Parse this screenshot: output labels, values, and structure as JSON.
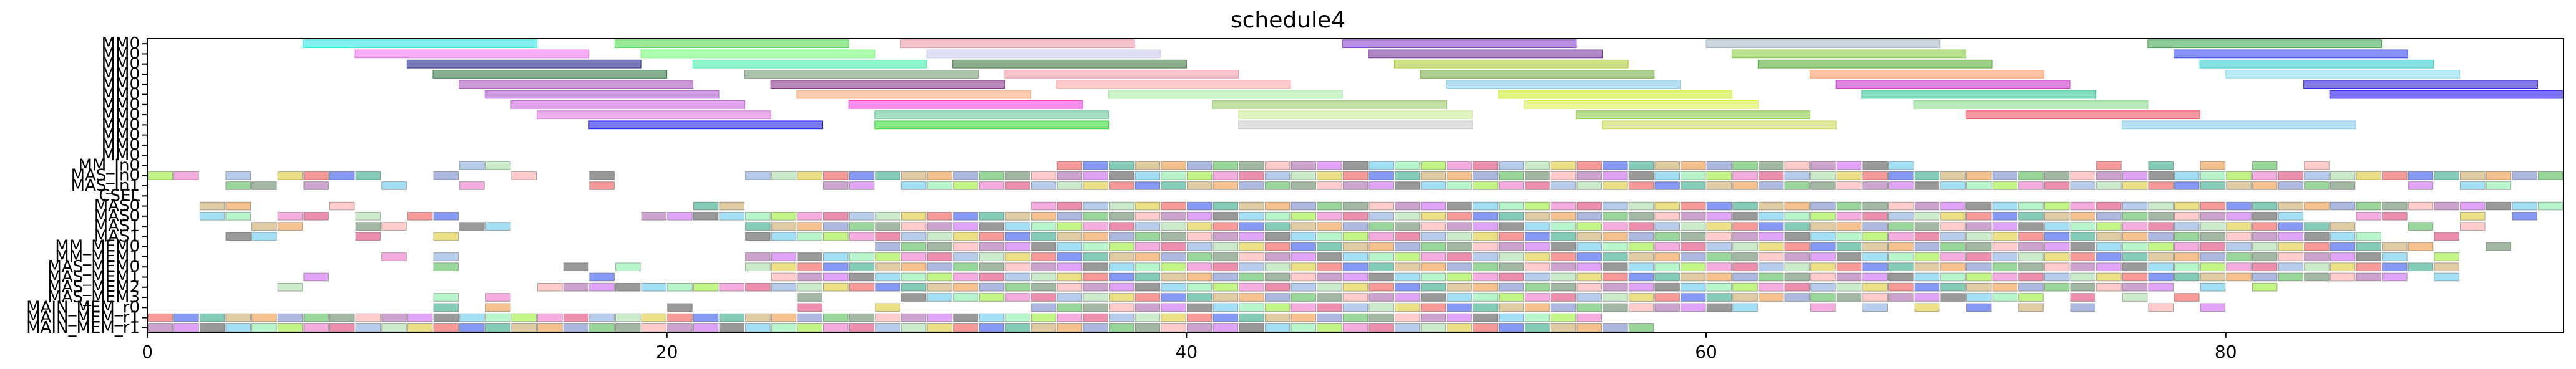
{
  "chart_data": {
    "type": "gantt",
    "title": "schedule4",
    "xlabel": "",
    "ylabel": "",
    "xlim": [
      0,
      93
    ],
    "xticks": [
      0,
      20,
      40,
      60,
      80
    ],
    "grid": false,
    "rows": [
      "MM0",
      "MM0",
      "MM0",
      "MM0",
      "MM0",
      "MM0",
      "MM0",
      "MM0",
      "MM0",
      "MM0",
      "MM0",
      "MM0",
      "MM_In0",
      "MAS_In0",
      "MAS_In1",
      "CSEL",
      "MAS0",
      "MAS0",
      "MAS1",
      "MAS1",
      "MM_MEM0",
      "MM_MEM1",
      "MAS_MEM0",
      "MAS_MEM1",
      "MAS_MEM2",
      "MAS_MEM3",
      "MAIN_MEM_r0",
      "MAIN_MEM_r1",
      "MAIN_MEM_r1"
    ],
    "tasks": [
      {
        "row": 0,
        "start": 6.0,
        "end": 15.0,
        "color": "#33e6e6"
      },
      {
        "row": 0,
        "start": 18.0,
        "end": 27.0,
        "color": "#55dd55"
      },
      {
        "row": 0,
        "start": 29.0,
        "end": 38.0,
        "color": "#ee99aa"
      },
      {
        "row": 0,
        "start": 46.0,
        "end": 55.0,
        "color": "#8844cc"
      },
      {
        "row": 0,
        "start": 60.0,
        "end": 69.0,
        "color": "#aabbcc"
      },
      {
        "row": 0,
        "start": 77.0,
        "end": 86.0,
        "color": "#44aa55"
      },
      {
        "row": 1,
        "start": 8.0,
        "end": 17.0,
        "color": "#ee77ee"
      },
      {
        "row": 1,
        "start": 19.0,
        "end": 28.0,
        "color": "#77ff77"
      },
      {
        "row": 1,
        "start": 30.0,
        "end": 39.0,
        "color": "#ccccee"
      },
      {
        "row": 1,
        "start": 47.0,
        "end": 56.0,
        "color": "#773399"
      },
      {
        "row": 1,
        "start": 61.0,
        "end": 70.0,
        "color": "#88cc44"
      },
      {
        "row": 1,
        "start": 78.0,
        "end": 87.0,
        "color": "#3344ee"
      },
      {
        "row": 2,
        "start": 10.0,
        "end": 19.0,
        "color": "#222288"
      },
      {
        "row": 2,
        "start": 21.0,
        "end": 30.0,
        "color": "#44eeaa"
      },
      {
        "row": 2,
        "start": 31.0,
        "end": 40.0,
        "color": "#447744"
      },
      {
        "row": 2,
        "start": 48.0,
        "end": 57.0,
        "color": "#aacc33"
      },
      {
        "row": 2,
        "start": 62.0,
        "end": 71.0,
        "color": "#55aa33"
      },
      {
        "row": 2,
        "start": 79.0,
        "end": 88.0,
        "color": "#33cccc"
      },
      {
        "row": 3,
        "start": 11.0,
        "end": 20.0,
        "color": "#337744"
      },
      {
        "row": 3,
        "start": 23.0,
        "end": 32.0,
        "color": "#779977"
      },
      {
        "row": 3,
        "start": 33.0,
        "end": 42.0,
        "color": "#ee99aa"
      },
      {
        "row": 3,
        "start": 49.0,
        "end": 58.0,
        "color": "#77aa44"
      },
      {
        "row": 3,
        "start": 64.0,
        "end": 73.0,
        "color": "#ff9966"
      },
      {
        "row": 3,
        "start": 80.0,
        "end": 89.0,
        "color": "#88ddee"
      },
      {
        "row": 4,
        "start": 12.0,
        "end": 21.0,
        "color": "#aa55bb"
      },
      {
        "row": 4,
        "start": 24.0,
        "end": 33.0,
        "color": "#883388"
      },
      {
        "row": 4,
        "start": 35.0,
        "end": 44.0,
        "color": "#ffaaaa"
      },
      {
        "row": 4,
        "start": 50.0,
        "end": 59.0,
        "color": "#88ccee"
      },
      {
        "row": 4,
        "start": 65.0,
        "end": 74.0,
        "color": "#cc33cc"
      },
      {
        "row": 4,
        "start": 83.0,
        "end": 92.0,
        "color": "#3322dd"
      },
      {
        "row": 5,
        "start": 13.0,
        "end": 22.0,
        "color": "#aa55cc"
      },
      {
        "row": 5,
        "start": 25.0,
        "end": 34.0,
        "color": "#ffaa77"
      },
      {
        "row": 5,
        "start": 37.0,
        "end": 46.0,
        "color": "#aaeeaa"
      },
      {
        "row": 5,
        "start": 52.0,
        "end": 61.0,
        "color": "#ccee33"
      },
      {
        "row": 5,
        "start": 66.0,
        "end": 75.0,
        "color": "#33cc99"
      },
      {
        "row": 5,
        "start": 84.0,
        "end": 93.0,
        "color": "#2211ee"
      },
      {
        "row": 6,
        "start": 14.0,
        "end": 23.0,
        "color": "#cc66dd"
      },
      {
        "row": 6,
        "start": 27.0,
        "end": 36.0,
        "color": "#ee44dd"
      },
      {
        "row": 6,
        "start": 41.0,
        "end": 50.0,
        "color": "#99cc66"
      },
      {
        "row": 6,
        "start": 53.0,
        "end": 62.0,
        "color": "#ddee55"
      },
      {
        "row": 6,
        "start": 68.0,
        "end": 77.0,
        "color": "#88dd88"
      },
      {
        "row": 7,
        "start": 15.0,
        "end": 24.0,
        "color": "#dd77dd"
      },
      {
        "row": 7,
        "start": 28.0,
        "end": 37.0,
        "color": "#66cc99"
      },
      {
        "row": 7,
        "start": 42.0,
        "end": 51.0,
        "color": "#ccee99"
      },
      {
        "row": 7,
        "start": 55.0,
        "end": 64.0,
        "color": "#88cc44"
      },
      {
        "row": 7,
        "start": 70.0,
        "end": 79.0,
        "color": "#ee5566"
      },
      {
        "row": 8,
        "start": 17.0,
        "end": 26.0,
        "color": "#2222ee"
      },
      {
        "row": 8,
        "start": 28.0,
        "end": 37.0,
        "color": "#33dd33"
      },
      {
        "row": 8,
        "start": 42.0,
        "end": 51.0,
        "color": "#cccccc"
      },
      {
        "row": 8,
        "start": 56.0,
        "end": 65.0,
        "color": "#ccdd55"
      },
      {
        "row": 8,
        "start": 76.0,
        "end": 85.0,
        "color": "#88ccee"
      }
    ],
    "cells": {
      "start": 0,
      "step": 1,
      "palette": [
        "#88aadd",
        "#ee5555",
        "#ccaa66",
        "#55bb55",
        "#aa66aa",
        "#66ccee",
        "#ee77cc",
        "#aaddaa",
        "#3355ee",
        "#ee9944",
        "#668866",
        "#cc66ee",
        "#88eeaa",
        "#dd4477",
        "#ddcc33",
        "#33aa88",
        "#7788cc",
        "#ffaaaa",
        "#555555",
        "#99ee33"
      ],
      "rows": {
        "12": "............cc.....................ccccccccccccccccccccccccccccccccc.......c.c.c.c.c..................",
        "13": "cc.c.cccc..c..c..c.....cccccccccccccccccccccccccccccccccccccccccccccccccccccccccccccccccccccccccccc.",
        "14": "...cc.c..c..c....c........cc.cccccccccccccccccccccccccccccccccccccccccccccccccccccccc..c.cc..",
        "16": "..cc...c.............cc...........cccccccccccccccccccccccccccccccccccccccccccccccccccccccccccccccc",
        "17": "..cc.cc.c.cc.......cccccccccccccccccccccccccccccccccccccccccccccccccccccccccccccccc..cc..c.c",
        "18": "....cc..cc..cc.........cccccccccccccccccccccccccccccccccccccccccccccccccccccccccccccc..c.c",
        "19": "...cc...c..c...........ccccccccccccccccccccccccccccccccccccccccccccccccccccccccccccccc..c",
        "20": "............................cccccccccccccccccccccccccccccccccccccccccccccccccccccccccccc..c",
        "21": ".........c.c...........cccccccccccccccccccccccccccccccccccccccccccccccccccccccccccccccc.c",
        "22": "...........c....c.c....cccccccccccccccccccccccccccccccccccccccccccccccccccccccccccccccccc",
        "23": "......c..........c......ccccccccccccccccccccccccccccccccccccccccccccccccccccccccccccccc.c",
        "24": ".....c.........ccccccccccccccccccccccccccccccccccccccccccccccccccccccccccccccc.c.c",
        "25": "...........c.c...........c...cccccccccccccccccccccccccccccccccccccccccccc.c.c.c..",
        "26": "...........c.c......c....c..c.....cccccccccccccccccccccccccccc..c.c.c.c.c.c..c.c",
        "27": "cccccccccccccccccccccccccccccccccccccccccccccccccccccccc.....",
        "28": "cccccccccccccccccccccccccccccccccccccccccccccccccccccccccc...."
      }
    }
  }
}
